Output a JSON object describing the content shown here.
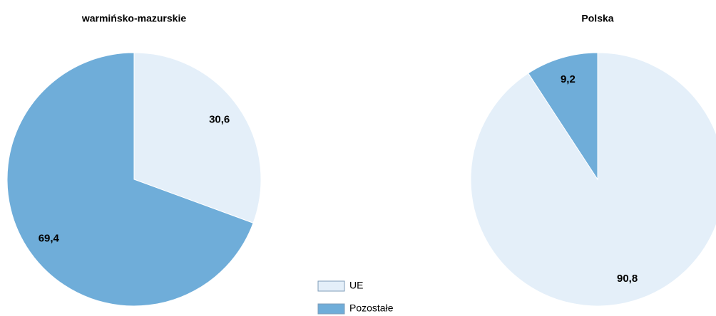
{
  "chart_data": [
    {
      "type": "pie",
      "title": "warmińsko-mazurskie",
      "categories": [
        "UE",
        "Pozostałe"
      ],
      "values": [
        30.6,
        69.4
      ],
      "value_labels": [
        "30,6",
        "69,4"
      ],
      "colors": [
        "#e4eff9",
        "#6fadd9"
      ]
    },
    {
      "type": "pie",
      "title": "Polska",
      "categories": [
        "UE",
        "Pozostałe"
      ],
      "values": [
        90.8,
        9.2
      ],
      "value_labels": [
        "90,8",
        "9,2"
      ],
      "colors": [
        "#e4eff9",
        "#6fadd9"
      ]
    }
  ]
}
